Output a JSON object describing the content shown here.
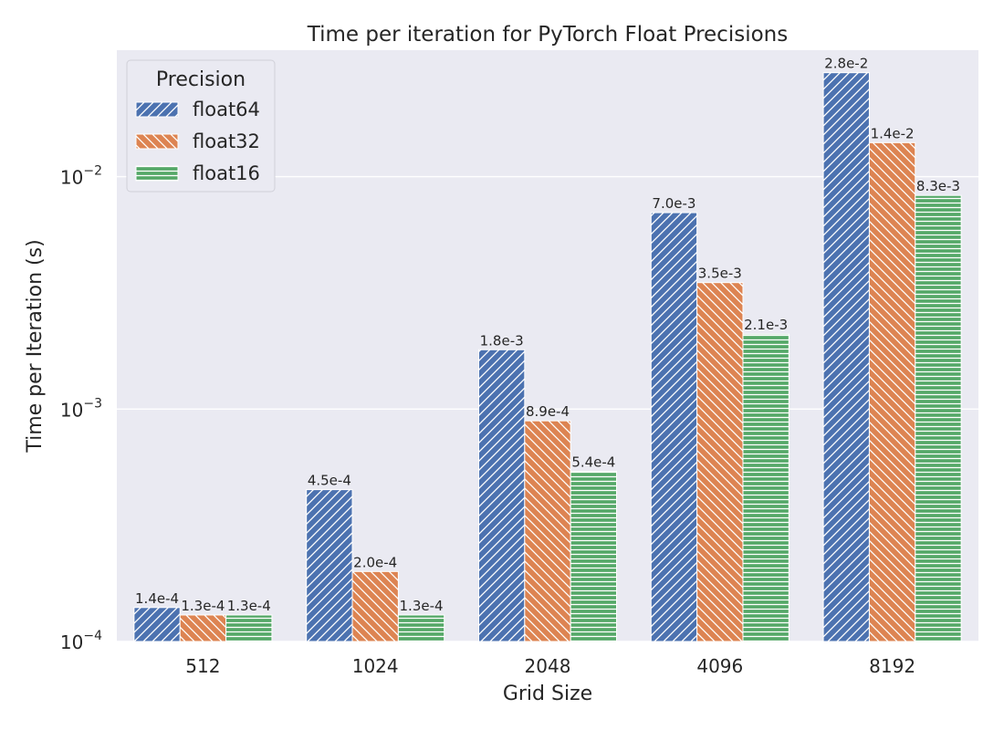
{
  "chart_data": {
    "type": "bar",
    "title": "Time per iteration for PyTorch Float Precisions",
    "xlabel": "Grid Size",
    "ylabel": "Time per Iteration (s)",
    "y_scale": "log",
    "ylim": [
      0.0001,
      0.035
    ],
    "y_ticks": [
      {
        "value": 0.0001,
        "base": "10",
        "exp": "−4"
      },
      {
        "value": 0.001,
        "base": "10",
        "exp": "−3"
      },
      {
        "value": 0.01,
        "base": "10",
        "exp": "−2"
      }
    ],
    "categories": [
      "512",
      "1024",
      "2048",
      "4096",
      "8192"
    ],
    "series": [
      {
        "name": "float64",
        "color": "#4c72b0",
        "hatch": "diagonal",
        "values": [
          0.00014,
          0.00045,
          0.0018,
          0.007,
          0.028
        ],
        "labels": [
          "1.4e-4",
          "4.5e-4",
          "1.8e-3",
          "7.0e-3",
          "2.8e-2"
        ]
      },
      {
        "name": "float32",
        "color": "#dd8452",
        "hatch": "backdiagonal",
        "values": [
          0.00013,
          0.0002,
          0.00089,
          0.0035,
          0.014
        ],
        "labels": [
          "1.3e-4",
          "2.0e-4",
          "8.9e-4",
          "3.5e-3",
          "1.4e-2"
        ]
      },
      {
        "name": "float16",
        "color": "#55a868",
        "hatch": "horizontal",
        "values": [
          0.00013,
          0.00013,
          0.00054,
          0.0021,
          0.0083
        ],
        "labels": [
          "1.3e-4",
          "1.3e-4",
          "5.4e-4",
          "2.1e-3",
          "8.3e-3"
        ]
      }
    ],
    "legend": {
      "title": "Precision",
      "position": "top-left"
    },
    "grid": true,
    "style": {
      "plot_background": "#eaeaf2",
      "grid_color": "#ffffff"
    }
  }
}
